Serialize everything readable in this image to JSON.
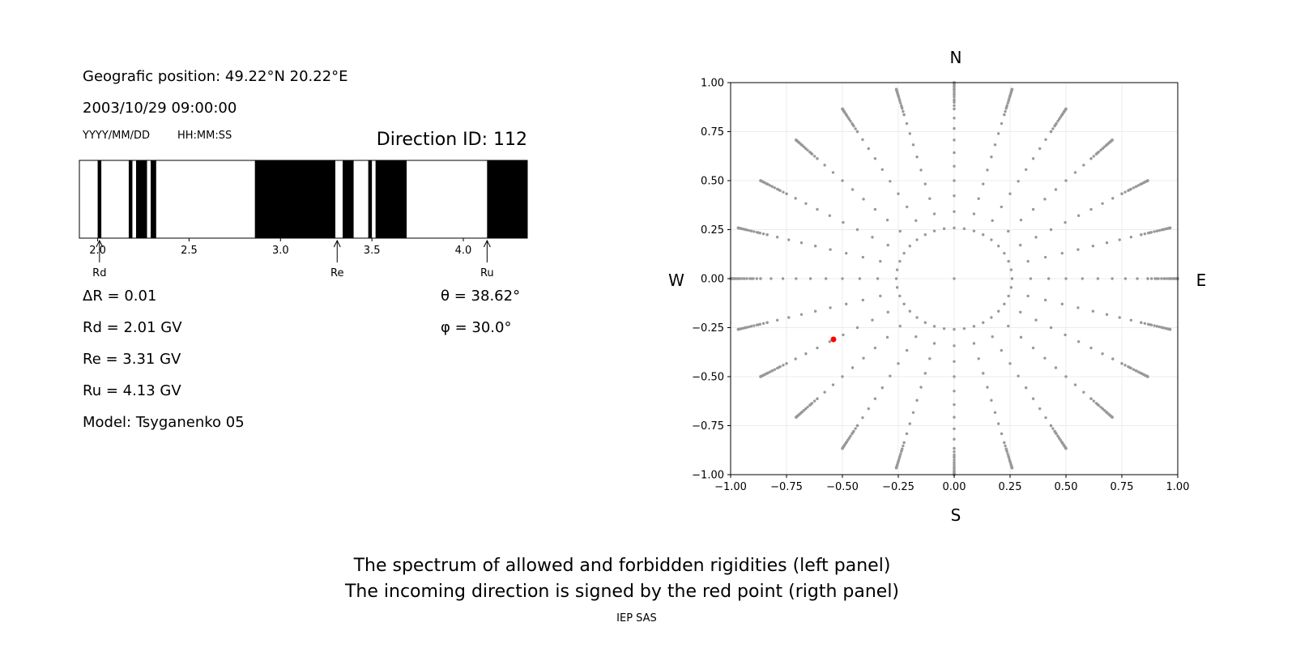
{
  "info": {
    "position": "Geografic position: 49.22°N 20.22°E",
    "datetime": "2003/10/29 09:00:00",
    "date_format": "YYYY/MM/DD",
    "time_format": "HH:MM:SS",
    "direction": "Direction ID: 112"
  },
  "params": {
    "delta_r": "ΔR = 0.01",
    "rd": "Rd = 2.01 GV",
    "re": "Re = 3.31 GV",
    "ru": "Ru = 4.13 GV",
    "model": "Model: Tsyganenko 05",
    "theta": "θ = 38.62°",
    "phi": "φ = 30.0°"
  },
  "compass": {
    "n": "N",
    "s": "S",
    "w": "W",
    "e": "E"
  },
  "caption": {
    "line1": "The spectrum of allowed and forbidden rigidities (left panel)",
    "line2": "The incoming direction is signed by the red point (rigth panel)",
    "footer": "IEP SAS"
  },
  "colors": {
    "forbidden": "#000000",
    "allowed": "#ffffff",
    "grid_points": "#999999",
    "direction_point": "#ff0000"
  },
  "chart_data": [
    {
      "type": "bar",
      "xlim": [
        1.9,
        4.35
      ],
      "xticks": [
        "2.0",
        "2.5",
        "3.0",
        "3.5",
        "4.0"
      ],
      "xtick_values": [
        2.0,
        2.5,
        3.0,
        3.5,
        4.0
      ],
      "forbidden_bands": [
        [
          2.0,
          2.02
        ],
        [
          2.17,
          2.19
        ],
        [
          2.21,
          2.27
        ],
        [
          2.29,
          2.32
        ],
        [
          2.86,
          3.3
        ],
        [
          3.34,
          3.4
        ],
        [
          3.48,
          3.5
        ],
        [
          3.52,
          3.69
        ],
        [
          4.13,
          4.35
        ]
      ],
      "markers": [
        {
          "label": "Rd",
          "value": 2.01
        },
        {
          "label": "Re",
          "value": 3.31
        },
        {
          "label": "Ru",
          "value": 4.13
        }
      ]
    },
    {
      "type": "scatter",
      "xlim": [
        -1.0,
        1.0
      ],
      "ylim": [
        -1.0,
        1.0
      ],
      "ticks": [
        "−1.00",
        "−0.75",
        "−0.50",
        "−0.25",
        "0.00",
        "0.25",
        "0.50",
        "0.75",
        "1.00"
      ],
      "tick_values": [
        -1.0,
        -0.75,
        -0.5,
        -0.25,
        0.0,
        0.25,
        0.5,
        0.75,
        1.0
      ],
      "grid": true,
      "grid_zenith_step_deg": 5,
      "grid_zenith_max_deg": 90,
      "grid_azimuth_step_deg": 10,
      "grid_azimuth_step_inner_deg": 15,
      "inner_ring_zenith_deg": 15,
      "inner_ring_azimuth_step_deg": 10,
      "highlight": {
        "x": -0.54,
        "y": -0.31
      }
    }
  ]
}
